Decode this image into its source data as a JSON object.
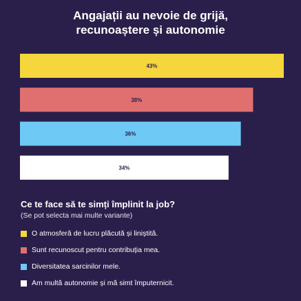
{
  "chart_data": {
    "type": "bar",
    "orientation": "horizontal",
    "title_lines": [
      "Angajații au nevoie de grijă,",
      "recunoaștere și autonomie"
    ],
    "categories": [
      "O atmosferă de lucru plăcută și liniștită.",
      "Sunt recunoscut pentru contribuția mea.",
      "Diversitatea sarcinilor mele.",
      "Am multă autonomie și mă simt împuternicit."
    ],
    "values": [
      43,
      38,
      36,
      34
    ],
    "value_labels": [
      "43%",
      "38%",
      "36%",
      "34%"
    ],
    "colors": [
      "#f5d63d",
      "#e07070",
      "#6ec9f5",
      "#ffffff"
    ],
    "xlim": [
      0,
      43
    ],
    "grid": false,
    "legend_placement": "bottom-left",
    "legend_heading": "Ce te face să te simți împlinit la job?",
    "legend_subheading": "(Se pot selecta mai multe variante)"
  }
}
